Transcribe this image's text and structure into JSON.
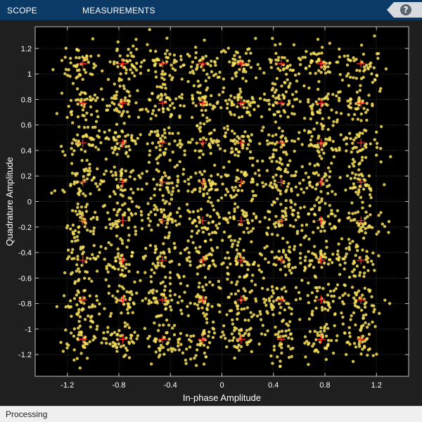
{
  "toolstrip": {
    "tabs": [
      {
        "label": "SCOPE"
      },
      {
        "label": "MEASUREMENTS"
      }
    ],
    "help_label": "?"
  },
  "status": {
    "text": "Processing"
  },
  "colors": {
    "toolstrip": "#0b3a66",
    "plot_background": "#000000",
    "points": "#f7e05a",
    "reference": "#ff2a2a",
    "grid": "#3a3a3a"
  },
  "chart_data": {
    "type": "scatter",
    "title": "",
    "xlabel": "In-phase Amplitude",
    "ylabel": "Quadrature Amplitude",
    "xlim": [
      -1.45,
      1.45
    ],
    "ylim": [
      -1.37,
      1.37
    ],
    "xticks": [
      -1.2,
      -0.8,
      -0.4,
      0,
      0.4,
      0.8,
      1.2
    ],
    "xtick_labels": [
      "-1.2",
      "-0.8",
      "-0.4",
      "0",
      "0.4",
      "0.8",
      "1.2"
    ],
    "yticks": [
      1.2,
      1,
      0.8,
      0.6,
      0.4,
      0.2,
      0,
      -0.2,
      -0.4,
      -0.6,
      -0.8,
      -1,
      -1.2
    ],
    "ytick_labels": [
      "1.2",
      "1",
      "0.8",
      "0.6",
      "0.4",
      "0.2",
      "0",
      "-0.2",
      "-0.4",
      "-0.6",
      "-0.8",
      "-1",
      "-1.2"
    ],
    "grid": true,
    "constellation": {
      "modulation": "64-QAM",
      "reference_points_per_axis": [
        -1.08,
        -0.77,
        -0.46,
        -0.15,
        0.15,
        0.46,
        0.77,
        1.08
      ],
      "received_points_noise_std": 0.08,
      "received_points_per_symbol": 45
    }
  }
}
